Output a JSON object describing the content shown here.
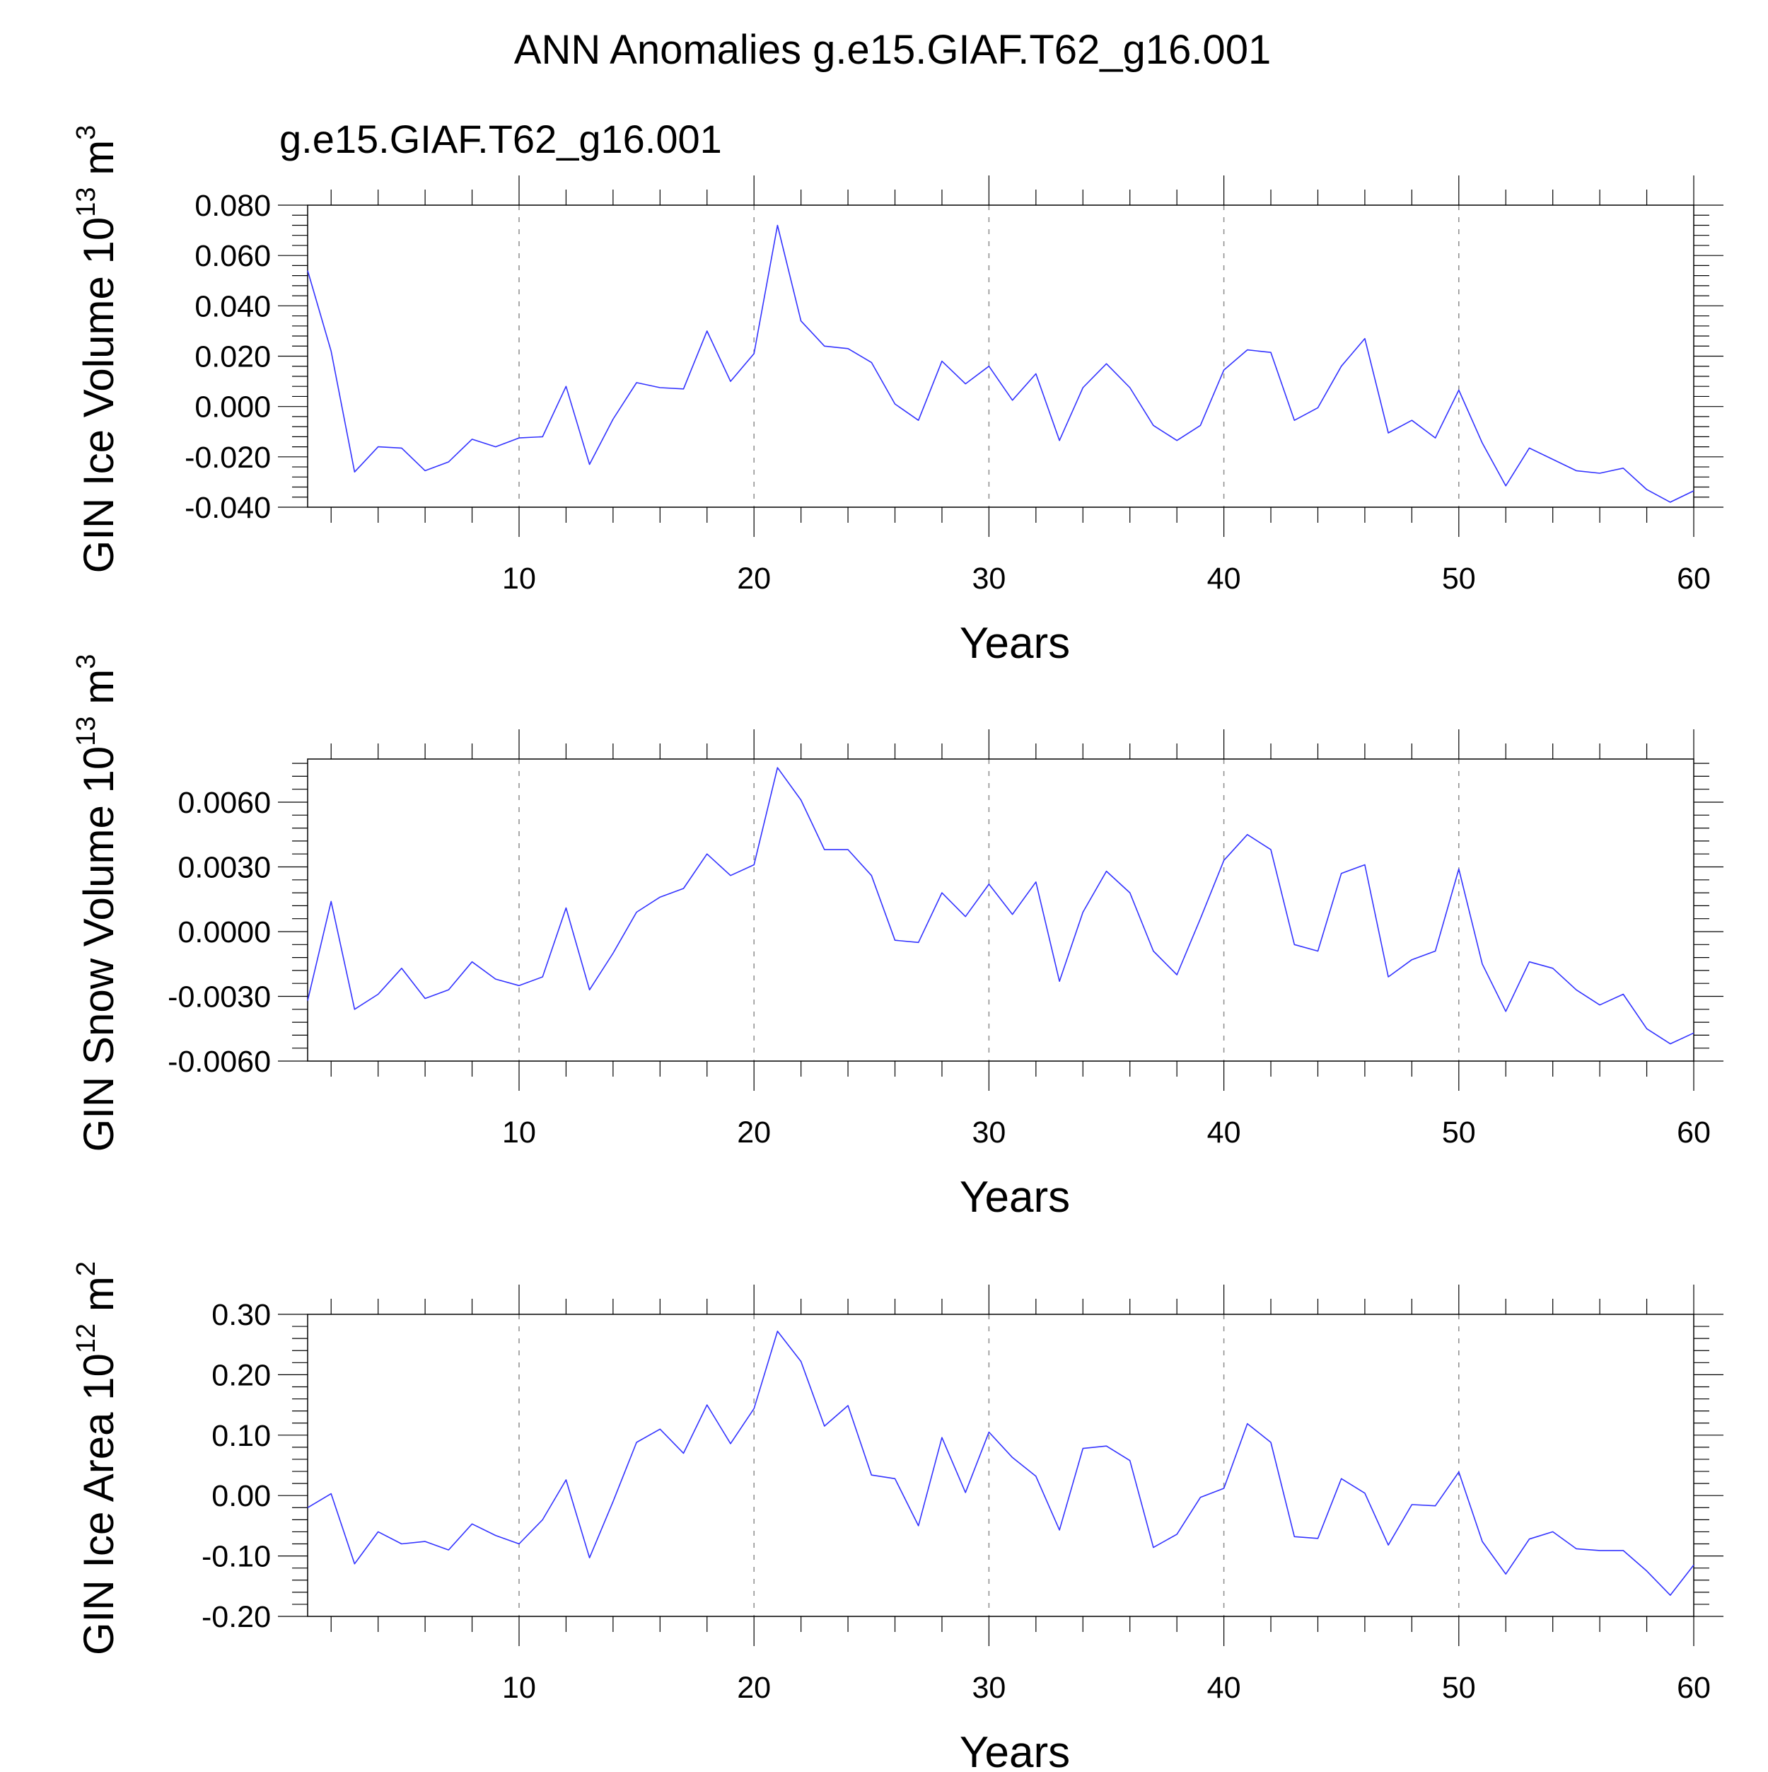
{
  "title": "ANN Anomalies g.e15.GIAF.T62_g16.001",
  "subtitle": "g.e15.GIAF.T62_g16.001",
  "colors": {
    "line": "#3333ff",
    "subtitle": "#0000ff",
    "grid": "#8c8c8c"
  },
  "chart_data": [
    {
      "type": "line",
      "xlabel": "Years",
      "ylabel": {
        "text": "GIN Ice Volume 10",
        "exp": "13",
        "unit": " m",
        "unitexp": "3"
      },
      "xlim": [
        1,
        60
      ],
      "ylim": [
        -0.04,
        0.08
      ],
      "xticks": [
        10,
        20,
        30,
        40,
        50,
        60
      ],
      "xtick_labels": [
        "10",
        "20",
        "30",
        "40",
        "50",
        "60"
      ],
      "yticks": [
        -0.04,
        -0.02,
        0.0,
        0.02,
        0.04,
        0.06,
        0.08
      ],
      "ytick_labels": [
        "-0.040",
        "-0.020",
        "0.000",
        "0.020",
        "0.040",
        "0.060",
        "0.080"
      ],
      "grid_x": [
        10,
        20,
        30,
        40,
        50
      ],
      "grid": "vertical dashed",
      "x": [
        1,
        2,
        3,
        4,
        5,
        6,
        7,
        8,
        9,
        10,
        11,
        12,
        13,
        14,
        15,
        16,
        17,
        18,
        19,
        20,
        21,
        22,
        23,
        24,
        25,
        26,
        27,
        28,
        29,
        30,
        31,
        32,
        33,
        34,
        35,
        36,
        37,
        38,
        39,
        40,
        41,
        42,
        43,
        44,
        45,
        46,
        47,
        48,
        49,
        50,
        51,
        52,
        53,
        54,
        55,
        56,
        57,
        58,
        59,
        60
      ],
      "values": [
        0.054,
        0.022,
        -0.026,
        -0.016,
        -0.0165,
        -0.0255,
        -0.022,
        -0.013,
        -0.016,
        -0.0125,
        -0.012,
        0.008,
        -0.023,
        -0.005,
        0.0095,
        0.0075,
        0.007,
        0.03,
        0.01,
        0.021,
        0.072,
        0.034,
        0.024,
        0.023,
        0.0175,
        0.001,
        -0.0055,
        0.018,
        0.009,
        0.016,
        0.0025,
        0.013,
        -0.0135,
        0.0075,
        0.017,
        0.0075,
        -0.0075,
        -0.0135,
        -0.0075,
        0.0145,
        0.0225,
        0.0215,
        -0.0055,
        -0.0005,
        0.016,
        0.027,
        -0.0105,
        -0.0055,
        -0.0125,
        0.0065,
        -0.0145,
        -0.0315,
        -0.0165,
        -0.021,
        -0.0255,
        -0.0265,
        -0.0245,
        -0.033,
        -0.038,
        -0.0335
      ]
    },
    {
      "type": "line",
      "xlabel": "Years",
      "ylabel": {
        "text": "GIN Snow Volume 10",
        "exp": "13",
        "unit": " m",
        "unitexp": "3"
      },
      "xlim": [
        1,
        60
      ],
      "ylim": [
        -0.006,
        0.008
      ],
      "xticks": [
        10,
        20,
        30,
        40,
        50,
        60
      ],
      "xtick_labels": [
        "10",
        "20",
        "30",
        "40",
        "50",
        "60"
      ],
      "yticks": [
        -0.006,
        -0.003,
        0.0,
        0.003,
        0.006
      ],
      "ytick_labels": [
        "-0.0060",
        "-0.0030",
        "0.0000",
        "0.0030",
        "0.0060"
      ],
      "grid_x": [
        10,
        20,
        30,
        40,
        50
      ],
      "grid": "vertical dashed",
      "x": [
        1,
        2,
        3,
        4,
        5,
        6,
        7,
        8,
        9,
        10,
        11,
        12,
        13,
        14,
        15,
        16,
        17,
        18,
        19,
        20,
        21,
        22,
        23,
        24,
        25,
        26,
        27,
        28,
        29,
        30,
        31,
        32,
        33,
        34,
        35,
        36,
        37,
        38,
        39,
        40,
        41,
        42,
        43,
        44,
        45,
        46,
        47,
        48,
        49,
        50,
        51,
        52,
        53,
        54,
        55,
        56,
        57,
        58,
        59,
        60
      ],
      "values": [
        -0.0032,
        0.0014,
        -0.0036,
        -0.0029,
        -0.0017,
        -0.0031,
        -0.0027,
        -0.0014,
        -0.0022,
        -0.0025,
        -0.0021,
        0.0011,
        -0.0027,
        -0.001,
        0.0009,
        0.0016,
        0.002,
        0.0036,
        0.0026,
        0.0031,
        0.0076,
        0.0061,
        0.0038,
        0.0038,
        0.0026,
        -0.0004,
        -0.0005,
        0.0018,
        0.0007,
        0.0022,
        0.0008,
        0.0023,
        -0.0023,
        0.0009,
        0.0028,
        0.0018,
        -0.0009,
        -0.002,
        0.0006,
        0.0033,
        0.0045,
        0.0038,
        -0.0006,
        -0.0009,
        0.0027,
        0.0031,
        -0.0021,
        -0.0013,
        -0.0009,
        0.0029,
        -0.0015,
        -0.0037,
        -0.0014,
        -0.0017,
        -0.0027,
        -0.0034,
        -0.0029,
        -0.0045,
        -0.0052,
        -0.0047
      ]
    },
    {
      "type": "line",
      "xlabel": "Years",
      "ylabel": {
        "text": "GIN Ice Area 10",
        "exp": "12",
        "unit": " m",
        "unitexp": "2"
      },
      "xlim": [
        1,
        60
      ],
      "ylim": [
        -0.2,
        0.3
      ],
      "xticks": [
        10,
        20,
        30,
        40,
        50,
        60
      ],
      "xtick_labels": [
        "10",
        "20",
        "30",
        "40",
        "50",
        "60"
      ],
      "yticks": [
        -0.2,
        -0.1,
        0.0,
        0.1,
        0.2,
        0.3
      ],
      "ytick_labels": [
        "-0.20",
        "-0.10",
        "0.00",
        "0.10",
        "0.20",
        "0.30"
      ],
      "grid_x": [
        10,
        20,
        30,
        40,
        50
      ],
      "grid": "vertical dashed",
      "x": [
        1,
        2,
        3,
        4,
        5,
        6,
        7,
        8,
        9,
        10,
        11,
        12,
        13,
        14,
        15,
        16,
        17,
        18,
        19,
        20,
        21,
        22,
        23,
        24,
        25,
        26,
        27,
        28,
        29,
        30,
        31,
        32,
        33,
        34,
        35,
        36,
        37,
        38,
        39,
        40,
        41,
        42,
        43,
        44,
        45,
        46,
        47,
        48,
        49,
        50,
        51,
        52,
        53,
        54,
        55,
        56,
        57,
        58,
        59,
        60
      ],
      "values": [
        -0.02,
        0.003,
        -0.113,
        -0.06,
        -0.08,
        -0.076,
        -0.09,
        -0.047,
        -0.066,
        -0.08,
        -0.04,
        0.026,
        -0.103,
        -0.01,
        0.088,
        0.11,
        0.07,
        0.15,
        0.086,
        0.144,
        0.272,
        0.222,
        0.115,
        0.149,
        0.034,
        0.028,
        -0.05,
        0.096,
        0.005,
        0.105,
        0.063,
        0.032,
        -0.057,
        0.078,
        0.082,
        0.058,
        -0.086,
        -0.064,
        -0.003,
        0.012,
        0.119,
        0.088,
        -0.068,
        -0.071,
        0.028,
        0.004,
        -0.082,
        -0.015,
        -0.017,
        0.039,
        -0.076,
        -0.13,
        -0.072,
        -0.06,
        -0.088,
        -0.091,
        -0.091,
        -0.125,
        -0.165,
        -0.115
      ]
    }
  ]
}
